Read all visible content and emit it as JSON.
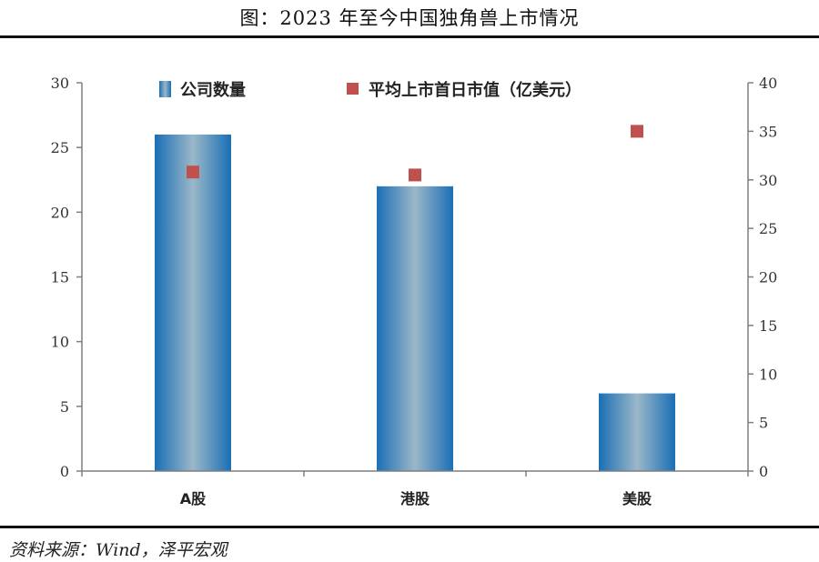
{
  "header": {
    "title": "图：2023 年至今中国独角兽上市情况"
  },
  "footer": {
    "source": "资料来源：Wind，泽平宏观"
  },
  "colors": {
    "bar_edge": "#1a6fb5",
    "bar_center": "#9bb7c8",
    "marker": "#c0504d",
    "axis": "#7f7f7f"
  },
  "chart_data": {
    "type": "bar",
    "categories": [
      "A股",
      "港股",
      "美股"
    ],
    "series": [
      {
        "name": "公司数量",
        "type": "bar",
        "axis": "left",
        "values": [
          26,
          22,
          6
        ]
      },
      {
        "name": "平均上市首日市值（亿美元）",
        "type": "scatter",
        "axis": "right",
        "values": [
          30.8,
          30.5,
          35
        ]
      }
    ],
    "y_left": {
      "range": [
        0,
        30
      ],
      "ticks": [
        "0",
        "5",
        "10",
        "15",
        "20",
        "25",
        "30"
      ]
    },
    "y_right": {
      "range": [
        0,
        40
      ],
      "ticks": [
        "0",
        "5",
        "10",
        "15",
        "20",
        "25",
        "30",
        "35",
        "40"
      ]
    },
    "legend_position": "top",
    "grid": false
  }
}
